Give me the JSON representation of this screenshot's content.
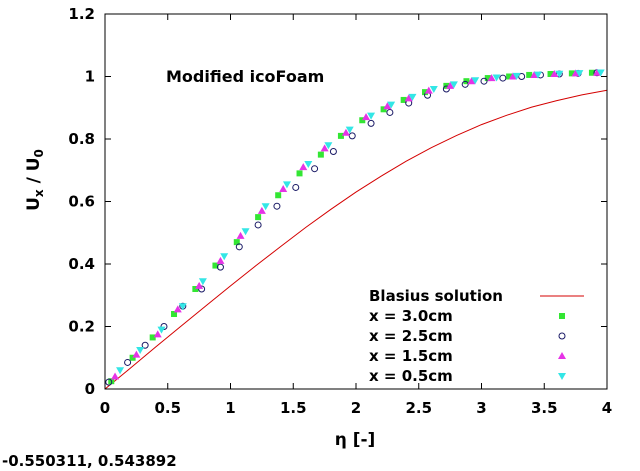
{
  "chart_data": {
    "type": "scatter",
    "annotation": "Modified icoFoam",
    "xlabel": "η [-]",
    "ylabel": {
      "base": "U",
      "base_sub": "x",
      "sep": " / ",
      "base2": "U",
      "base2_sub": "0"
    },
    "xlim": [
      0,
      4
    ],
    "ylim": [
      0,
      1.2
    ],
    "xticks": [
      0,
      0.5,
      1,
      1.5,
      2,
      2.5,
      3,
      3.5,
      4
    ],
    "xtick_labels": [
      "0",
      "0.5",
      "1",
      "1.5",
      "2",
      "2.5",
      "3",
      "3.5",
      "4"
    ],
    "yticks": [
      0,
      0.2,
      0.4,
      0.6,
      0.8,
      1,
      1.2
    ],
    "ytick_labels": [
      "0",
      "0.2",
      "0.4",
      "0.6",
      "0.8",
      "1",
      "1.2"
    ],
    "grid": false,
    "legend_position": "bottom-right",
    "series": [
      {
        "name": "Blasius solution",
        "kind": "line",
        "color": "#d40000",
        "x": [
          0,
          0.2,
          0.4,
          0.6,
          0.8,
          1.0,
          1.2,
          1.4,
          1.6,
          1.8,
          2.0,
          2.2,
          2.4,
          2.6,
          2.8,
          3.0,
          3.2,
          3.4,
          3.6,
          3.8,
          4.0
        ],
        "y": [
          0,
          0.066,
          0.133,
          0.199,
          0.265,
          0.33,
          0.394,
          0.456,
          0.517,
          0.575,
          0.63,
          0.681,
          0.729,
          0.772,
          0.811,
          0.846,
          0.876,
          0.902,
          0.923,
          0.941,
          0.956
        ]
      },
      {
        "name": "x = 3.0cm",
        "kind": "marker",
        "marker": "square",
        "color": "#33e633",
        "x": [
          0.05,
          0.22,
          0.38,
          0.55,
          0.72,
          0.88,
          1.05,
          1.22,
          1.38,
          1.55,
          1.72,
          1.88,
          2.05,
          2.22,
          2.38,
          2.55,
          2.72,
          2.88,
          3.05,
          3.22,
          3.38,
          3.55,
          3.72,
          3.88
        ],
        "y": [
          0.025,
          0.1,
          0.165,
          0.24,
          0.32,
          0.395,
          0.47,
          0.55,
          0.62,
          0.69,
          0.75,
          0.81,
          0.86,
          0.895,
          0.925,
          0.95,
          0.97,
          0.985,
          0.995,
          1.0,
          1.005,
          1.008,
          1.01,
          1.012
        ]
      },
      {
        "name": "x = 2.5cm",
        "kind": "marker",
        "marker": "circle",
        "color": "#1a1a66",
        "x": [
          0.03,
          0.18,
          0.32,
          0.47,
          0.62,
          0.77,
          0.92,
          1.07,
          1.22,
          1.37,
          1.52,
          1.67,
          1.82,
          1.97,
          2.12,
          2.27,
          2.42,
          2.57,
          2.72,
          2.87,
          3.02,
          3.17,
          3.32,
          3.47,
          3.62,
          3.77,
          3.92
        ],
        "y": [
          0.022,
          0.085,
          0.14,
          0.2,
          0.265,
          0.32,
          0.39,
          0.455,
          0.525,
          0.585,
          0.645,
          0.705,
          0.76,
          0.81,
          0.85,
          0.885,
          0.915,
          0.94,
          0.96,
          0.975,
          0.985,
          0.995,
          1.0,
          1.005,
          1.008,
          1.01,
          1.012
        ]
      },
      {
        "name": "x = 1.5cm",
        "kind": "marker",
        "marker": "triangle-up",
        "color": "#e633e6",
        "x": [
          0.08,
          0.25,
          0.42,
          0.58,
          0.75,
          0.92,
          1.08,
          1.25,
          1.42,
          1.58,
          1.75,
          1.92,
          2.08,
          2.25,
          2.42,
          2.58,
          2.75,
          2.92,
          3.08,
          3.25,
          3.42,
          3.58,
          3.75,
          3.92
        ],
        "y": [
          0.04,
          0.11,
          0.175,
          0.255,
          0.33,
          0.41,
          0.49,
          0.57,
          0.64,
          0.71,
          0.77,
          0.82,
          0.87,
          0.905,
          0.93,
          0.955,
          0.97,
          0.985,
          0.995,
          1.0,
          1.005,
          1.008,
          1.01,
          1.012
        ]
      },
      {
        "name": "x = 0.5cm",
        "kind": "marker",
        "marker": "triangle-down",
        "color": "#33e6e6",
        "x": [
          0.12,
          0.28,
          0.45,
          0.62,
          0.78,
          0.95,
          1.12,
          1.28,
          1.45,
          1.62,
          1.78,
          1.95,
          2.12,
          2.28,
          2.45,
          2.62,
          2.78,
          2.95,
          3.12,
          3.28,
          3.45,
          3.62,
          3.78,
          3.95
        ],
        "y": [
          0.06,
          0.125,
          0.19,
          0.265,
          0.345,
          0.425,
          0.505,
          0.585,
          0.655,
          0.72,
          0.78,
          0.83,
          0.875,
          0.91,
          0.935,
          0.96,
          0.975,
          0.988,
          0.997,
          1.002,
          1.006,
          1.009,
          1.011,
          1.013
        ]
      }
    ]
  },
  "coordinate_readout": "-0.550311,  0.543892"
}
